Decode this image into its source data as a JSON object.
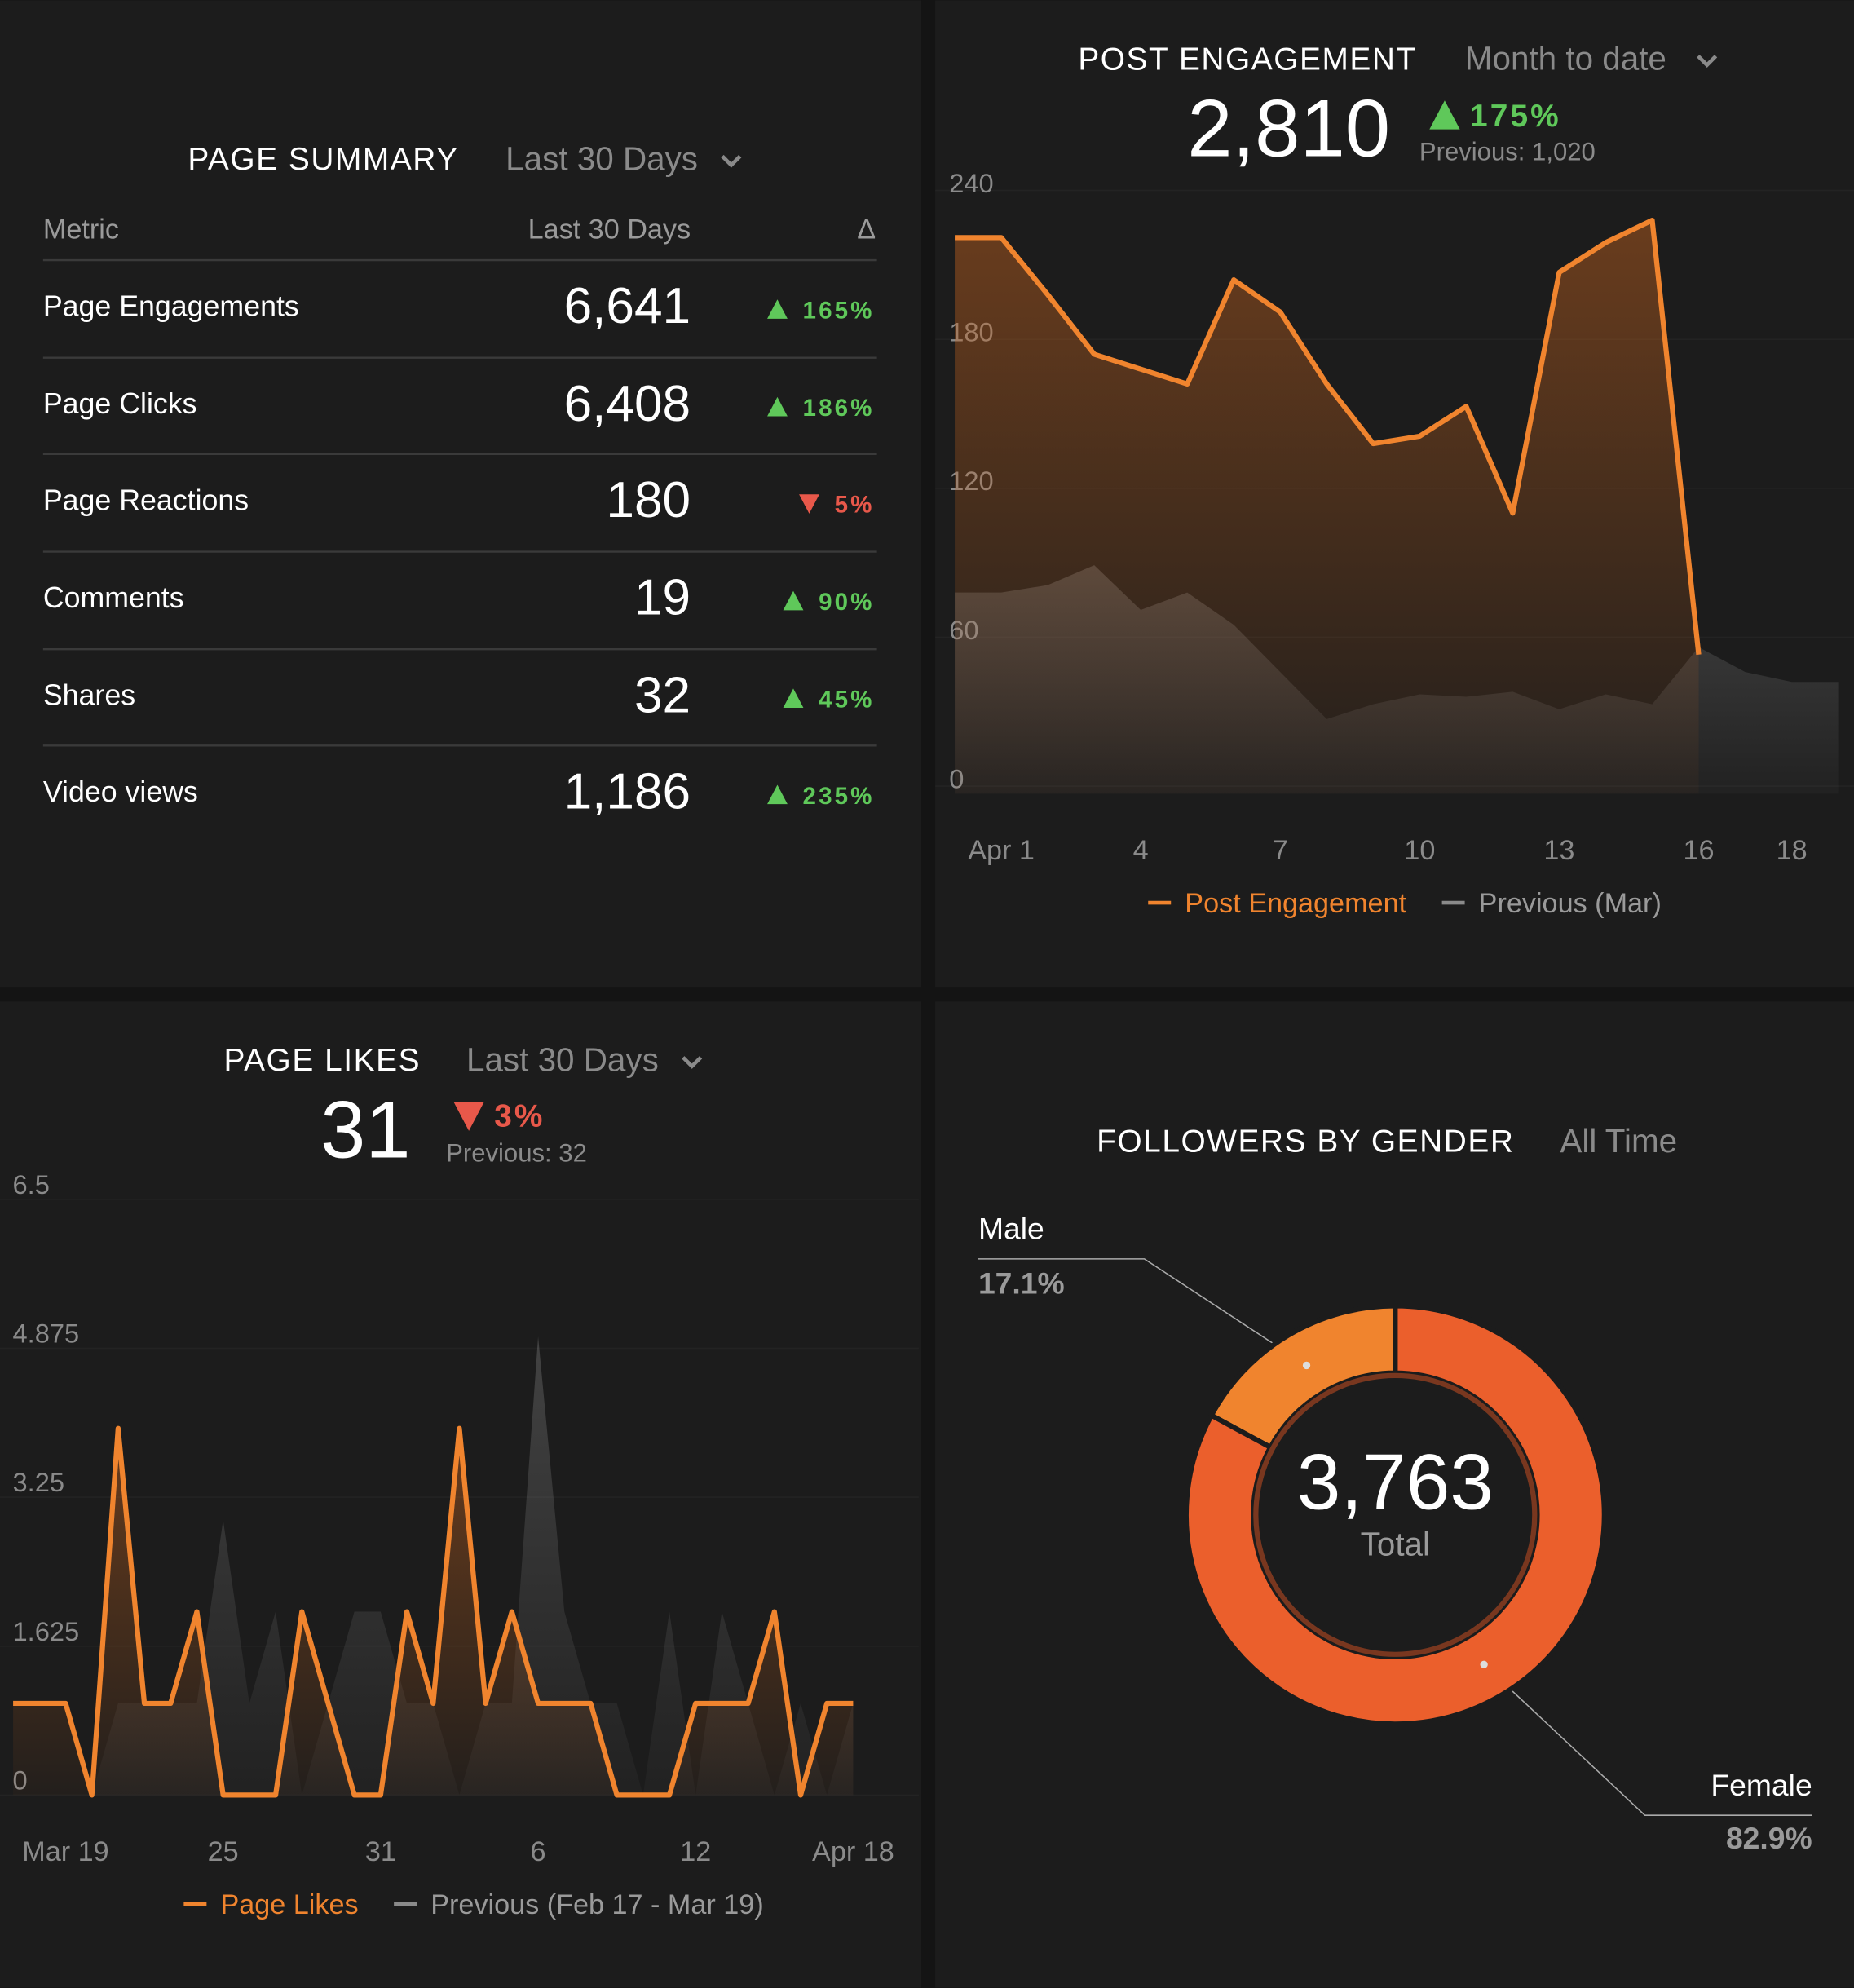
{
  "page_summary": {
    "title": "PAGE SUMMARY",
    "period": "Last 30 Days",
    "columns": [
      "Metric",
      "Last 30 Days",
      "Δ"
    ],
    "rows": [
      {
        "metric": "Page Engagements",
        "value": "6,641",
        "delta": "165%",
        "direction": "up"
      },
      {
        "metric": "Page Clicks",
        "value": "6,408",
        "delta": "186%",
        "direction": "up"
      },
      {
        "metric": "Page Reactions",
        "value": "180",
        "delta": "5%",
        "direction": "down"
      },
      {
        "metric": "Comments",
        "value": "19",
        "delta": "90%",
        "direction": "up"
      },
      {
        "metric": "Shares",
        "value": "32",
        "delta": "45%",
        "direction": "up"
      },
      {
        "metric": "Video views",
        "value": "1,186",
        "delta": "235%",
        "direction": "up"
      }
    ]
  },
  "chart_data": [
    {
      "type": "area-line",
      "title": "POST ENGAGEMENT",
      "period": "Month to date",
      "kpi": "2,810",
      "change": "175%",
      "direction": "up",
      "previous": "Previous: 1,020",
      "xlim": [
        -0.42,
        19.34
      ],
      "xticks": [
        {
          "value": 1,
          "label": "Apr 1"
        },
        4,
        7,
        10,
        13,
        16,
        18
      ],
      "ylim": [
        0,
        240
      ],
      "yticks": [
        0,
        60,
        120,
        180,
        240
      ],
      "series": [
        {
          "name": "Previous (Mar)",
          "color": "#8a8a8a",
          "x": [
            0,
            1,
            2,
            3,
            4,
            5,
            6,
            7,
            8,
            9,
            10,
            11,
            12,
            13,
            14,
            15,
            16,
            17,
            18,
            19
          ],
          "values": [
            78,
            78,
            81,
            89,
            71,
            78,
            65,
            46,
            27,
            33,
            37,
            36,
            38,
            31,
            37,
            33,
            56,
            46,
            42,
            42
          ]
        },
        {
          "name": "Post Engagement",
          "color": "#f0842e",
          "x": [
            0,
            1,
            2,
            3,
            4,
            5,
            6,
            7,
            8,
            9,
            10,
            11,
            12,
            13,
            14,
            15,
            16
          ],
          "values": [
            221,
            221,
            198,
            174,
            168,
            162,
            204,
            191,
            162,
            138,
            141,
            153,
            110,
            207,
            219,
            228,
            53
          ]
        }
      ]
    },
    {
      "type": "area-line",
      "title": "PAGE LIKES",
      "period": "Last 30 Days",
      "kpi": "31",
      "change": "3%",
      "direction": "down",
      "previous": "Previous: 32",
      "xlim": [
        -2.5,
        32.5
      ],
      "xticks": [
        {
          "value": 0,
          "label": "Mar 19"
        },
        {
          "value": 6,
          "label": "25"
        },
        {
          "value": 12,
          "label": "31"
        },
        {
          "value": 18,
          "label": "6"
        },
        {
          "value": 24,
          "label": "12"
        },
        {
          "value": 30,
          "label": "Apr 18"
        }
      ],
      "ylim": [
        0,
        6.5
      ],
      "yticks": [
        0,
        1.625,
        3.25,
        4.875,
        6.5
      ],
      "series": [
        {
          "name": "Previous (Feb 17 - Mar 19)",
          "color": "#8a8a8a",
          "x": [
            -2,
            -1,
            0,
            1,
            2,
            3,
            4,
            5,
            6,
            7,
            8,
            9,
            10,
            11,
            12,
            13,
            14,
            15,
            16,
            17,
            18,
            19,
            20,
            21,
            22,
            23,
            24,
            25,
            26,
            27,
            28,
            29,
            30
          ],
          "values": [
            0,
            0,
            0,
            0,
            1,
            1,
            1,
            1,
            3,
            1,
            2,
            0,
            1,
            2,
            2,
            1,
            1,
            0,
            1,
            1,
            5,
            2,
            1,
            1,
            0,
            2,
            0,
            2,
            1,
            0,
            1,
            0,
            1
          ]
        },
        {
          "name": "Page Likes",
          "color": "#f0842e",
          "x": [
            -2,
            -1,
            0,
            1,
            2,
            3,
            4,
            5,
            6,
            7,
            8,
            9,
            10,
            11,
            12,
            13,
            14,
            15,
            16,
            17,
            18,
            19,
            20,
            21,
            22,
            23,
            24,
            25,
            26,
            27,
            28,
            29,
            30
          ],
          "values": [
            1,
            1,
            1,
            0,
            4,
            1,
            1,
            2,
            0,
            0,
            0,
            2,
            1,
            0,
            0,
            2,
            1,
            4,
            1,
            2,
            1,
            1,
            1,
            0,
            0,
            0,
            1,
            1,
            1,
            2,
            0,
            1,
            1
          ]
        }
      ]
    },
    {
      "type": "donut",
      "title": "FOLLOWERS BY GENDER",
      "period": "All Time",
      "total": "3,763",
      "total_label": "Total",
      "categories": [
        "Male",
        "Female"
      ],
      "values": [
        17.1,
        82.9
      ],
      "value_labels": [
        "17.1%",
        "82.9%"
      ],
      "colors": [
        "#f0842e",
        "#eb5f2c"
      ]
    }
  ]
}
